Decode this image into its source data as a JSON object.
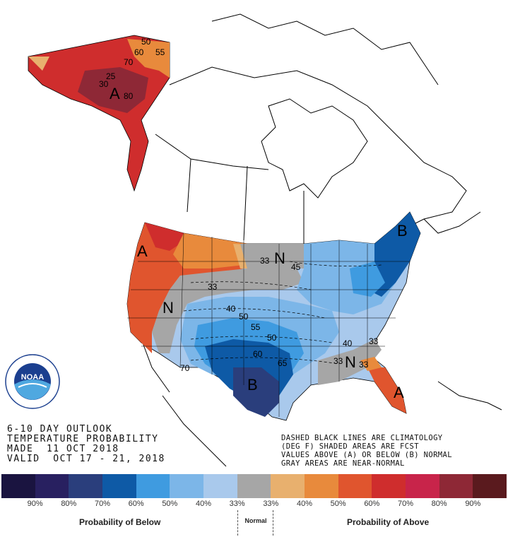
{
  "title": {
    "line1": "6-10 DAY OUTLOOK",
    "line2": "TEMPERATURE PROBABILITY",
    "line3": "MADE  11 OCT 2018",
    "line4": "VALID  OCT 17 - 21, 2018"
  },
  "notes": {
    "line1": "DASHED BLACK LINES ARE CLIMATOLOGY",
    "line2": "(DEG F) SHADED AREAS ARE FCST",
    "line3": "VALUES ABOVE (A) OR BELOW (B) NORMAL",
    "line4": "GRAY AREAS ARE NEAR-NORMAL"
  },
  "logo": {
    "name": "noaa-logo",
    "text": "NOAA",
    "ring_text": "NATIONAL OCEANIC AND ATMOSPHERIC ADMINISTRATION · U.S. DEPARTMENT OF COMMERCE"
  },
  "map_labels": {
    "above_west": "A",
    "above_alaska": "A",
    "above_florida": "A",
    "below_texas": "B",
    "below_northeast": "B",
    "normal_nw": "N",
    "normal_north": "N",
    "normal_se": "N"
  },
  "contours": [
    "50",
    "60",
    "55",
    "70",
    "25",
    "30",
    "80",
    "33",
    "40",
    "45",
    "50",
    "55",
    "50",
    "60",
    "65",
    "70",
    "40",
    "33",
    "33",
    "33",
    "33"
  ],
  "legend": {
    "swatches": [
      {
        "color": "#1a1440"
      },
      {
        "color": "#282060"
      },
      {
        "color": "#2a3e7c"
      },
      {
        "color": "#0e5aa6"
      },
      {
        "color": "#3f9be0"
      },
      {
        "color": "#7cb6e8"
      },
      {
        "color": "#a9c9ec"
      },
      {
        "color": "#a6a6a6"
      },
      {
        "color": "#e8b06e"
      },
      {
        "color": "#e88a3c"
      },
      {
        "color": "#e0552e"
      },
      {
        "color": "#cf2d2d"
      },
      {
        "color": "#c8244a"
      },
      {
        "color": "#8e2836"
      },
      {
        "color": "#5a1a1e"
      }
    ],
    "percent_labels": [
      "90%",
      "80%",
      "70%",
      "60%",
      "50%",
      "40%",
      "33%",
      "33%",
      "40%",
      "50%",
      "60%",
      "70%",
      "80%",
      "90%"
    ],
    "below_title": "Probability of Below",
    "normal_title": "Normal",
    "above_title": "Probability of Above"
  }
}
